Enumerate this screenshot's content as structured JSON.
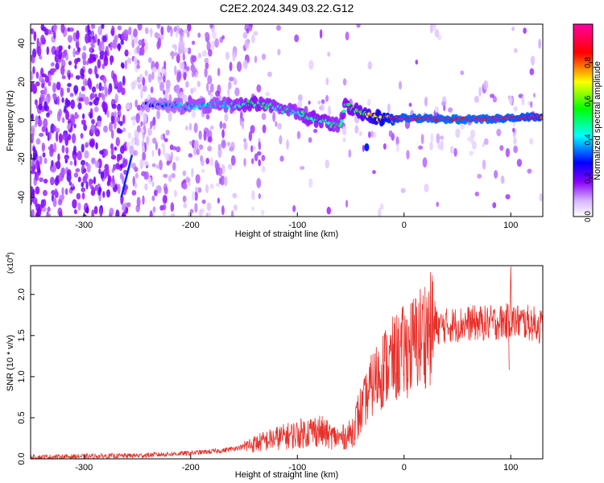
{
  "title": "C2E2.2024.349.03.22.G12",
  "top_panel": {
    "ylabel": "Frequency (Hz)",
    "xlabel": "Height of straight line (km)",
    "xticks": [
      "-300",
      "-200",
      "-100",
      "0",
      "100"
    ],
    "yticks": [
      "-40",
      "-20",
      "0",
      "20",
      "40"
    ],
    "colorbar": {
      "label": "Normalized spectral amplitude",
      "ticks": [
        "0.0",
        "0.2",
        "0.4",
        "0.6",
        "0.8"
      ],
      "colors": [
        "#ffffff",
        "#8a00ff",
        "#0000ff",
        "#00ffff",
        "#00ff00",
        "#ffff00",
        "#ff0000",
        "#ff00a0"
      ]
    }
  },
  "bottom_panel": {
    "ylabel": "SNR (10 * v/v)",
    "scale_note": "(x10",
    "scale_exp": "4",
    "scale_close": ")",
    "xlabel": "Height of straight line (km)",
    "xticks": [
      "-300",
      "-200",
      "-100",
      "0",
      "100"
    ],
    "yticks": [
      "0.0",
      "0.5",
      "1.0",
      "1.5",
      "2.0"
    ],
    "line_color": "#e8302a"
  },
  "chart_data": [
    {
      "type": "heatmap",
      "title": "C2E2.2024.349.03.22.G12",
      "xlabel": "Height of straight line (km)",
      "ylabel": "Frequency (Hz)",
      "xlim": [
        -350,
        130
      ],
      "ylim": [
        -50,
        50
      ],
      "colorbar_label": "Normalized spectral amplitude",
      "colorbar_range": [
        0,
        1
      ],
      "ridge": [
        {
          "x": -245,
          "y": 8,
          "amp": 0.3
        },
        {
          "x": -220,
          "y": 8,
          "amp": 0.35
        },
        {
          "x": -200,
          "y": 7,
          "amp": 0.4
        },
        {
          "x": -180,
          "y": 8,
          "amp": 0.4
        },
        {
          "x": -160,
          "y": 8,
          "amp": 0.45
        },
        {
          "x": -140,
          "y": 9,
          "amp": 0.5
        },
        {
          "x": -120,
          "y": 7,
          "amp": 0.45
        },
        {
          "x": -100,
          "y": 4,
          "amp": 0.45
        },
        {
          "x": -80,
          "y": 0,
          "amp": 0.5
        },
        {
          "x": -60,
          "y": -3,
          "amp": 0.45
        },
        {
          "x": -55,
          "y": 8,
          "amp": 0.5
        },
        {
          "x": -40,
          "y": 4,
          "amp": 0.6
        },
        {
          "x": -20,
          "y": 1,
          "amp": 0.8
        },
        {
          "x": 0,
          "y": 1,
          "amp": 0.95
        },
        {
          "x": 50,
          "y": 0.5,
          "amp": 0.97
        },
        {
          "x": 100,
          "y": 1,
          "amp": 0.95
        },
        {
          "x": 130,
          "y": 2,
          "amp": 0.9
        }
      ],
      "feature": {
        "x": [
          -265,
          -255
        ],
        "y": [
          -40,
          -18
        ],
        "note": "diagonal streak"
      }
    },
    {
      "type": "line",
      "xlabel": "Height of straight line (km)",
      "ylabel": "SNR (10 * v/v)",
      "y_multiplier": 10000,
      "xlim": [
        -350,
        130
      ],
      "ylim": [
        0,
        23500
      ],
      "color": "#e8302a",
      "x": [
        -350,
        -300,
        -250,
        -200,
        -170,
        -150,
        -120,
        -100,
        -90,
        -80,
        -70,
        -60,
        -50,
        -40,
        -30,
        -20,
        -10,
        0,
        10,
        20,
        30,
        40,
        60,
        80,
        100,
        120,
        130
      ],
      "y": [
        200,
        300,
        400,
        700,
        1000,
        1500,
        2500,
        3000,
        3300,
        3500,
        2800,
        2500,
        3000,
        6000,
        9000,
        11000,
        12000,
        13000,
        14000,
        15500,
        16000,
        16200,
        16500,
        16500,
        16800,
        16500,
        16000
      ]
    }
  ]
}
